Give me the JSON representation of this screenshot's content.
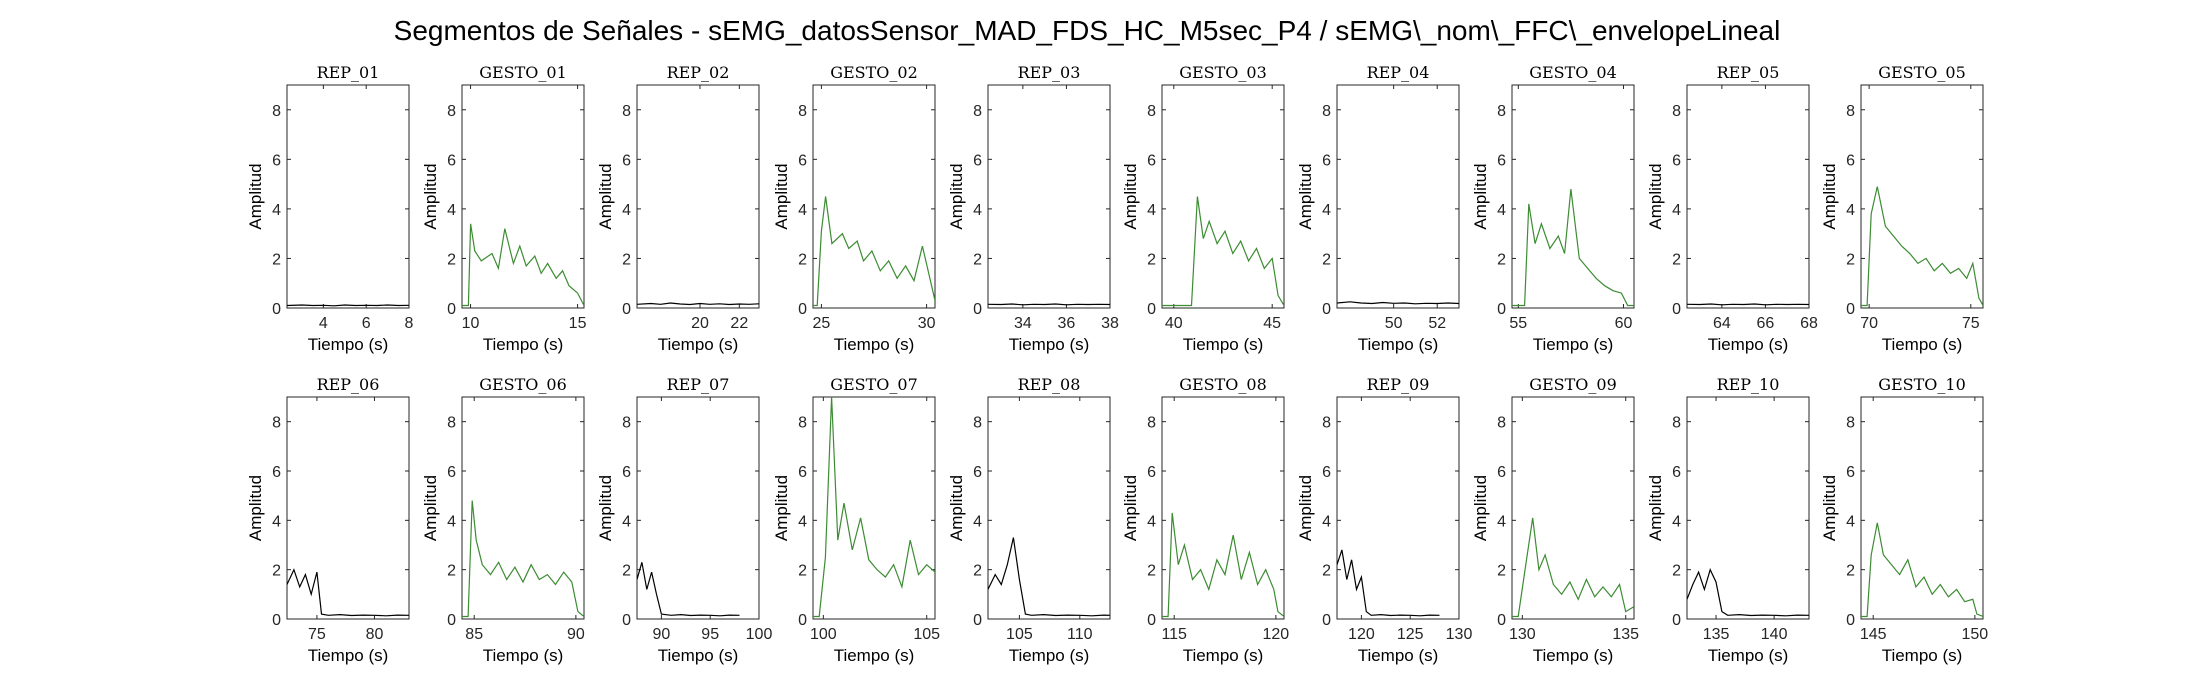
{
  "figure": {
    "title": "Segmentos de Señales - sEMG_datosSensor_MAD_FDS_HC_M5sec_P4 / sEMG\\_nom\\_FFC\\_envelopeLineal"
  },
  "colors": {
    "rep": "#000000",
    "gesto": "#3c8c32",
    "axis": "#262626"
  },
  "chart_data": [
    {
      "type": "line",
      "title": "REP_01",
      "xlabel": "Tiempo (s)",
      "ylabel": "Amplitud",
      "xlim": [
        2.3,
        8
      ],
      "ylim": [
        0,
        9
      ],
      "xticks": [
        4,
        6,
        8
      ],
      "yticks": [
        0,
        2,
        4,
        6,
        8
      ],
      "series_kind": "rep",
      "x": [
        2.3,
        3,
        3.5,
        4,
        4.5,
        5,
        5.5,
        6,
        6.5,
        7,
        7.5,
        8
      ],
      "y": [
        0.1,
        0.12,
        0.1,
        0.11,
        0.09,
        0.12,
        0.1,
        0.11,
        0.1,
        0.12,
        0.1,
        0.11
      ]
    },
    {
      "type": "line",
      "title": "GESTO_01",
      "xlabel": "Tiempo (s)",
      "ylabel": "Amplitud",
      "xlim": [
        9.6,
        15.3
      ],
      "ylim": [
        0,
        9
      ],
      "xticks": [
        10,
        15
      ],
      "yticks": [
        0,
        2,
        4,
        6,
        8
      ],
      "series_kind": "gesto",
      "x": [
        9.6,
        9.9,
        10,
        10.2,
        10.5,
        11,
        11.3,
        11.6,
        12,
        12.3,
        12.6,
        13,
        13.3,
        13.6,
        14,
        14.3,
        14.6,
        15,
        15.3
      ],
      "y": [
        0.1,
        0.1,
        3.4,
        2.3,
        1.9,
        2.2,
        1.6,
        3.2,
        1.8,
        2.5,
        1.7,
        2.1,
        1.4,
        1.8,
        1.2,
        1.5,
        0.9,
        0.6,
        0.1
      ]
    },
    {
      "type": "line",
      "title": "REP_02",
      "xlabel": "Tiempo (s)",
      "ylabel": "Amplitud",
      "xlim": [
        16.8,
        23
      ],
      "ylim": [
        0,
        9
      ],
      "xticks": [
        20,
        22
      ],
      "yticks": [
        0,
        2,
        4,
        6,
        8
      ],
      "series_kind": "rep",
      "x": [
        16.8,
        17.5,
        18,
        18.5,
        19,
        19.5,
        20,
        20.5,
        21,
        21.5,
        22,
        22.5,
        23
      ],
      "y": [
        0.15,
        0.18,
        0.15,
        0.2,
        0.16,
        0.14,
        0.18,
        0.15,
        0.17,
        0.14,
        0.16,
        0.15,
        0.17
      ]
    },
    {
      "type": "line",
      "title": "GESTO_02",
      "xlabel": "Tiempo (s)",
      "ylabel": "Amplitud",
      "xlim": [
        24.6,
        30.4
      ],
      "ylim": [
        0,
        9
      ],
      "xticks": [
        25,
        30
      ],
      "yticks": [
        0,
        2,
        4,
        6,
        8
      ],
      "series_kind": "gesto",
      "x": [
        24.6,
        24.8,
        25,
        25.2,
        25.5,
        26,
        26.3,
        26.7,
        27,
        27.4,
        27.8,
        28.2,
        28.6,
        29,
        29.4,
        29.8,
        30.1,
        30.4
      ],
      "y": [
        0.1,
        0.1,
        3.1,
        4.5,
        2.6,
        3.0,
        2.4,
        2.7,
        1.9,
        2.3,
        1.5,
        1.9,
        1.2,
        1.7,
        1.1,
        2.5,
        1.4,
        0.3
      ]
    },
    {
      "type": "line",
      "title": "REP_03",
      "xlabel": "Tiempo (s)",
      "ylabel": "Amplitud",
      "xlim": [
        32.4,
        38
      ],
      "ylim": [
        0,
        9
      ],
      "xticks": [
        34,
        36,
        38
      ],
      "yticks": [
        0,
        2,
        4,
        6,
        8
      ],
      "series_kind": "rep",
      "x": [
        32.4,
        33,
        33.5,
        34,
        34.5,
        35,
        35.5,
        36,
        36.5,
        37,
        37.5,
        38
      ],
      "y": [
        0.15,
        0.14,
        0.16,
        0.13,
        0.15,
        0.14,
        0.16,
        0.13,
        0.15,
        0.14,
        0.15,
        0.14
      ]
    },
    {
      "type": "line",
      "title": "GESTO_03",
      "xlabel": "Tiempo (s)",
      "ylabel": "Amplitud",
      "xlim": [
        39.4,
        45.6
      ],
      "ylim": [
        0,
        9
      ],
      "xticks": [
        40,
        45
      ],
      "yticks": [
        0,
        2,
        4,
        6,
        8
      ],
      "series_kind": "gesto",
      "x": [
        39.4,
        40,
        40.9,
        41.2,
        41.5,
        41.8,
        42.2,
        42.6,
        43,
        43.4,
        43.8,
        44.2,
        44.6,
        45,
        45.3,
        45.6
      ],
      "y": [
        0.1,
        0.1,
        0.1,
        4.5,
        2.8,
        3.5,
        2.6,
        3.1,
        2.2,
        2.7,
        1.9,
        2.4,
        1.6,
        2.0,
        0.5,
        0.1
      ]
    },
    {
      "type": "line",
      "title": "REP_04",
      "xlabel": "Tiempo (s)",
      "ylabel": "Amplitud",
      "xlim": [
        47.4,
        53
      ],
      "ylim": [
        0,
        9
      ],
      "xticks": [
        50,
        52
      ],
      "yticks": [
        0,
        2,
        4,
        6,
        8
      ],
      "series_kind": "rep",
      "x": [
        47.4,
        48,
        48.5,
        49,
        49.5,
        50,
        50.5,
        51,
        51.5,
        52,
        52.5,
        53
      ],
      "y": [
        0.2,
        0.25,
        0.2,
        0.18,
        0.22,
        0.19,
        0.2,
        0.17,
        0.19,
        0.18,
        0.2,
        0.18
      ]
    },
    {
      "type": "line",
      "title": "GESTO_04",
      "xlabel": "Tiempo (s)",
      "ylabel": "Amplitud",
      "xlim": [
        54.7,
        60.5
      ],
      "ylim": [
        0,
        9
      ],
      "xticks": [
        55,
        60
      ],
      "yticks": [
        0,
        2,
        4,
        6,
        8
      ],
      "series_kind": "gesto",
      "x": [
        54.7,
        55,
        55.3,
        55.5,
        55.8,
        56.1,
        56.5,
        56.9,
        57.2,
        57.5,
        57.9,
        58.3,
        58.7,
        59.1,
        59.5,
        59.9,
        60.2,
        60.5
      ],
      "y": [
        0.1,
        0.1,
        0.1,
        4.2,
        2.6,
        3.4,
        2.4,
        2.9,
        2.2,
        4.8,
        2.0,
        1.6,
        1.2,
        0.9,
        0.7,
        0.6,
        0.1,
        0.1
      ]
    },
    {
      "type": "line",
      "title": "REP_05",
      "xlabel": "Tiempo (s)",
      "ylabel": "Amplitud",
      "xlim": [
        62.4,
        68
      ],
      "ylim": [
        0,
        9
      ],
      "xticks": [
        64,
        66,
        68
      ],
      "yticks": [
        0,
        2,
        4,
        6,
        8
      ],
      "series_kind": "rep",
      "x": [
        62.4,
        63,
        63.5,
        64,
        64.5,
        65,
        65.5,
        66,
        66.5,
        67,
        67.5,
        68
      ],
      "y": [
        0.15,
        0.14,
        0.16,
        0.13,
        0.15,
        0.14,
        0.16,
        0.13,
        0.15,
        0.14,
        0.15,
        0.14
      ]
    },
    {
      "type": "line",
      "title": "GESTO_05",
      "xlabel": "Tiempo (s)",
      "ylabel": "Amplitud",
      "xlim": [
        69.6,
        75.6
      ],
      "ylim": [
        0,
        9
      ],
      "xticks": [
        70,
        75
      ],
      "yticks": [
        0,
        2,
        4,
        6,
        8
      ],
      "series_kind": "gesto",
      "x": [
        69.6,
        69.9,
        70.1,
        70.4,
        70.8,
        71.2,
        71.6,
        72,
        72.4,
        72.8,
        73.2,
        73.6,
        74,
        74.4,
        74.8,
        75.1,
        75.4,
        75.6
      ],
      "y": [
        0.1,
        0.1,
        3.8,
        4.9,
        3.3,
        2.9,
        2.5,
        2.2,
        1.8,
        2.0,
        1.5,
        1.8,
        1.4,
        1.6,
        1.2,
        1.8,
        0.4,
        0.1
      ]
    },
    {
      "type": "line",
      "title": "REP_06",
      "xlabel": "Tiempo (s)",
      "ylabel": "Amplitud",
      "xlim": [
        72.4,
        83
      ],
      "ylim": [
        0,
        9
      ],
      "xticks": [
        75,
        80
      ],
      "yticks": [
        0,
        2,
        4,
        6,
        8
      ],
      "series_kind": "rep",
      "x": [
        72.4,
        73,
        73.5,
        74,
        74.5,
        75,
        75.4,
        76,
        77,
        78,
        79,
        80,
        81,
        82,
        83
      ],
      "y": [
        1.4,
        2.0,
        1.3,
        1.8,
        1.0,
        1.9,
        0.2,
        0.15,
        0.18,
        0.14,
        0.16,
        0.15,
        0.13,
        0.16,
        0.15
      ]
    },
    {
      "type": "line",
      "title": "GESTO_06",
      "xlabel": "Tiempo (s)",
      "ylabel": "Amplitud",
      "xlim": [
        84.4,
        90.4
      ],
      "ylim": [
        0,
        9
      ],
      "xticks": [
        85,
        90
      ],
      "yticks": [
        0,
        2,
        4,
        6,
        8
      ],
      "series_kind": "gesto",
      "x": [
        84.4,
        84.7,
        84.9,
        85.1,
        85.4,
        85.8,
        86.2,
        86.6,
        87,
        87.4,
        87.8,
        88.2,
        88.6,
        89,
        89.4,
        89.8,
        90.1,
        90.4
      ],
      "y": [
        0.1,
        0.1,
        4.8,
        3.2,
        2.2,
        1.8,
        2.3,
        1.6,
        2.1,
        1.5,
        2.2,
        1.6,
        1.8,
        1.4,
        1.9,
        1.5,
        0.3,
        0.1
      ]
    },
    {
      "type": "line",
      "title": "REP_07",
      "xlabel": "Tiempo (s)",
      "ylabel": "Amplitud",
      "xlim": [
        87.5,
        100
      ],
      "ylim": [
        0,
        9
      ],
      "xticks": [
        90,
        95,
        100
      ],
      "yticks": [
        0,
        2,
        4,
        6,
        8
      ],
      "series_kind": "rep",
      "x": [
        87.5,
        88,
        88.5,
        89,
        89.5,
        90,
        91,
        92,
        93,
        94,
        95,
        96,
        97,
        98
      ],
      "y": [
        1.6,
        2.3,
        1.2,
        1.9,
        1.0,
        0.2,
        0.15,
        0.18,
        0.14,
        0.16,
        0.15,
        0.13,
        0.16,
        0.15
      ]
    },
    {
      "type": "line",
      "title": "GESTO_07",
      "xlabel": "Tiempo (s)",
      "ylabel": "Amplitud",
      "xlim": [
        99.5,
        105.4
      ],
      "ylim": [
        0,
        9
      ],
      "xticks": [
        100,
        105
      ],
      "yticks": [
        0,
        2,
        4,
        6,
        8
      ],
      "series_kind": "gesto",
      "x": [
        99.5,
        99.8,
        100.1,
        100.4,
        100.7,
        101,
        101.4,
        101.8,
        102.2,
        102.6,
        103,
        103.4,
        103.8,
        104.2,
        104.6,
        105,
        105.4
      ],
      "y": [
        0.1,
        0.1,
        2.5,
        9.0,
        3.2,
        4.7,
        2.8,
        4.1,
        2.4,
        2.0,
        1.7,
        2.2,
        1.3,
        3.2,
        1.8,
        2.2,
        1.9
      ]
    },
    {
      "type": "line",
      "title": "REP_08",
      "xlabel": "Tiempo (s)",
      "ylabel": "Amplitud",
      "xlim": [
        102.4,
        112.5
      ],
      "ylim": [
        0,
        9
      ],
      "xticks": [
        105,
        110
      ],
      "yticks": [
        0,
        2,
        4,
        6,
        8
      ],
      "series_kind": "rep",
      "x": [
        102.4,
        103,
        103.5,
        104,
        104.5,
        105,
        105.5,
        106,
        107,
        108,
        109,
        110,
        111,
        112,
        112.5
      ],
      "y": [
        1.2,
        1.8,
        1.4,
        2.2,
        3.3,
        1.6,
        0.2,
        0.15,
        0.18,
        0.14,
        0.16,
        0.15,
        0.13,
        0.16,
        0.15
      ]
    },
    {
      "type": "line",
      "title": "GESTO_08",
      "xlabel": "Tiempo (s)",
      "ylabel": "Amplitud",
      "xlim": [
        114.4,
        120.4
      ],
      "ylim": [
        0,
        9
      ],
      "xticks": [
        115,
        120
      ],
      "yticks": [
        0,
        2,
        4,
        6,
        8
      ],
      "series_kind": "gesto",
      "x": [
        114.4,
        114.7,
        114.9,
        115.2,
        115.5,
        115.9,
        116.3,
        116.7,
        117.1,
        117.5,
        117.9,
        118.3,
        118.7,
        119.1,
        119.5,
        119.9,
        120.1,
        120.4
      ],
      "y": [
        0.1,
        0.1,
        4.3,
        2.2,
        3.0,
        1.6,
        2.0,
        1.2,
        2.4,
        1.8,
        3.4,
        1.6,
        2.7,
        1.4,
        2.0,
        1.2,
        0.3,
        0.1
      ]
    },
    {
      "type": "line",
      "title": "REP_09",
      "xlabel": "Tiempo (s)",
      "ylabel": "Amplitud",
      "xlim": [
        117.5,
        130
      ],
      "ylim": [
        0,
        9
      ],
      "xticks": [
        120,
        125,
        130
      ],
      "yticks": [
        0,
        2,
        4,
        6,
        8
      ],
      "series_kind": "rep",
      "x": [
        117.5,
        118,
        118.5,
        119,
        119.5,
        120,
        120.5,
        121,
        122,
        123,
        124,
        125,
        126,
        127,
        128
      ],
      "y": [
        2.2,
        2.8,
        1.6,
        2.4,
        1.2,
        1.7,
        0.3,
        0.15,
        0.18,
        0.14,
        0.16,
        0.15,
        0.13,
        0.16,
        0.15
      ]
    },
    {
      "type": "line",
      "title": "GESTO_09",
      "xlabel": "Tiempo (s)",
      "ylabel": "Amplitud",
      "xlim": [
        129.5,
        135.4
      ],
      "ylim": [
        0,
        9
      ],
      "xticks": [
        130,
        135
      ],
      "yticks": [
        0,
        2,
        4,
        6,
        8
      ],
      "series_kind": "gesto",
      "x": [
        129.5,
        129.8,
        130.2,
        130.5,
        130.8,
        131.1,
        131.5,
        131.9,
        132.3,
        132.7,
        133.1,
        133.5,
        133.9,
        134.3,
        134.7,
        135,
        135.4
      ],
      "y": [
        0.1,
        0.1,
        2.4,
        4.1,
        2.0,
        2.6,
        1.4,
        1.0,
        1.5,
        0.8,
        1.6,
        0.9,
        1.3,
        0.9,
        1.4,
        0.3,
        0.5
      ]
    },
    {
      "type": "line",
      "title": "REP_10",
      "xlabel": "Tiempo (s)",
      "ylabel": "Amplitud",
      "xlim": [
        132.5,
        143
      ],
      "ylim": [
        0,
        9
      ],
      "xticks": [
        135,
        140
      ],
      "yticks": [
        0,
        2,
        4,
        6,
        8
      ],
      "series_kind": "rep",
      "x": [
        132.5,
        133,
        133.5,
        134,
        134.5,
        135,
        135.5,
        136,
        137,
        138,
        139,
        140,
        141,
        142,
        143
      ],
      "y": [
        0.8,
        1.4,
        1.9,
        1.2,
        2.0,
        1.5,
        0.3,
        0.15,
        0.18,
        0.14,
        0.16,
        0.15,
        0.13,
        0.16,
        0.15
      ]
    },
    {
      "type": "line",
      "title": "GESTO_10",
      "xlabel": "Tiempo (s)",
      "ylabel": "Amplitud",
      "xlim": [
        144.4,
        150.4
      ],
      "ylim": [
        0,
        9
      ],
      "xticks": [
        145,
        150
      ],
      "yticks": [
        0,
        2,
        4,
        6,
        8
      ],
      "series_kind": "gesto",
      "x": [
        144.4,
        144.7,
        144.9,
        145.2,
        145.5,
        145.9,
        146.3,
        146.7,
        147.1,
        147.5,
        147.9,
        148.3,
        148.7,
        149.1,
        149.5,
        149.9,
        150.1,
        150.4
      ],
      "y": [
        0.1,
        0.1,
        2.6,
        3.9,
        2.6,
        2.2,
        1.8,
        2.4,
        1.3,
        1.7,
        1.0,
        1.4,
        0.9,
        1.2,
        0.7,
        0.8,
        0.2,
        0.1
      ]
    }
  ]
}
